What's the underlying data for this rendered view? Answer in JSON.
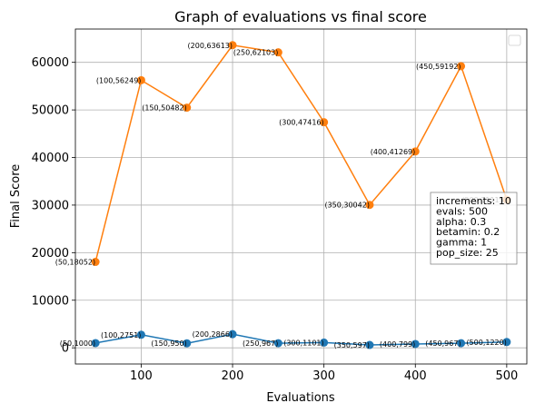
{
  "chart_data": {
    "type": "line",
    "title": "Graph of evaluations vs final score",
    "xlabel": "Evaluations",
    "ylabel": "Final Score",
    "xlim": [
      28,
      522
    ],
    "ylim": [
      -3400,
      67000
    ],
    "xticks": [
      100,
      200,
      300,
      400,
      500
    ],
    "yticks": [
      0,
      10000,
      20000,
      30000,
      40000,
      50000,
      60000
    ],
    "grid": true,
    "legend": "top-right",
    "series": [
      {
        "color": "#1f77b4",
        "x": [
          50,
          100,
          150,
          200,
          250,
          300,
          350,
          400,
          450,
          500
        ],
        "values": [
          1000,
          2751,
          950,
          2866,
          967,
          1101,
          597,
          799,
          967,
          1220
        ],
        "labels": [
          "(50,1000)",
          "(100,2751)",
          "(150,950)",
          "(200,2866)",
          "(250,967)",
          "(300,1101)",
          "(350,597)",
          "(400,799)",
          "(450,967)",
          "(500,1220)"
        ]
      },
      {
        "color": "#ff7f0e",
        "x": [
          50,
          100,
          150,
          200,
          250,
          300,
          350,
          400,
          450,
          500
        ],
        "values": [
          18052,
          56249,
          50482,
          63613,
          62103,
          47416,
          30042,
          41269,
          59192,
          31115
        ],
        "labels": [
          "(50,18052)",
          "(100,56249)",
          "(150,50482)",
          "(200,63613)",
          "(250,62103)",
          "(300,47416)",
          "(350,30042)",
          "(400,41269)",
          "(450,59192)",
          "(500,31115)"
        ]
      }
    ],
    "info_box": [
      "increments: 10",
      "evals: 500",
      "alpha: 0.3",
      "betamin: 0.2",
      "gamma: 1",
      "pop_size: 25"
    ]
  }
}
